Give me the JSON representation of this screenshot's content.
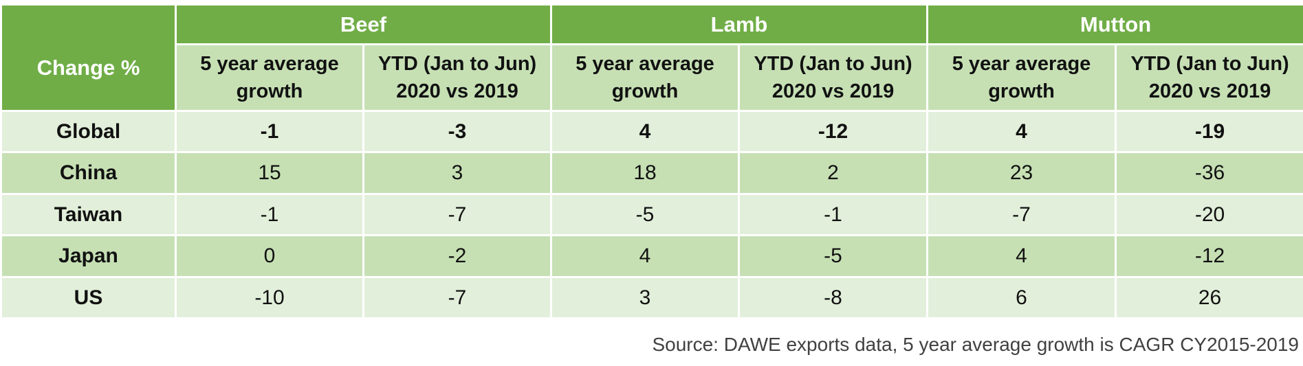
{
  "chart_data": {
    "type": "table",
    "corner_label": "Change %",
    "groups": [
      "Beef",
      "Lamb",
      "Mutton"
    ],
    "subheaders": [
      [
        "5 year average",
        "growth"
      ],
      [
        "YTD (Jan to Jun)",
        "2020 vs 2019"
      ]
    ],
    "rows": [
      {
        "label": "Global",
        "values": [
          "-1",
          "-3",
          "4",
          "-12",
          "4",
          "-19"
        ],
        "bold": true
      },
      {
        "label": "China",
        "values": [
          "15",
          "3",
          "18",
          "2",
          "23",
          "-36"
        ],
        "bold": false
      },
      {
        "label": "Taiwan",
        "values": [
          "-1",
          "-7",
          "-5",
          "-1",
          "-7",
          "-20"
        ],
        "bold": false
      },
      {
        "label": "Japan",
        "values": [
          "0",
          "-2",
          "4",
          "-5",
          "4",
          "-12"
        ],
        "bold": false
      },
      {
        "label": "US",
        "values": [
          "-10",
          "-7",
          "3",
          "-8",
          "6",
          "26"
        ],
        "bold": false
      }
    ],
    "colors": {
      "header": "#70ad47",
      "subheader": "#c6e0b4",
      "row_light": "#e2efda",
      "row_dark": "#c6e0b4"
    }
  },
  "source_note": "Source: DAWE exports data, 5 year average growth is CAGR CY2015-2019"
}
